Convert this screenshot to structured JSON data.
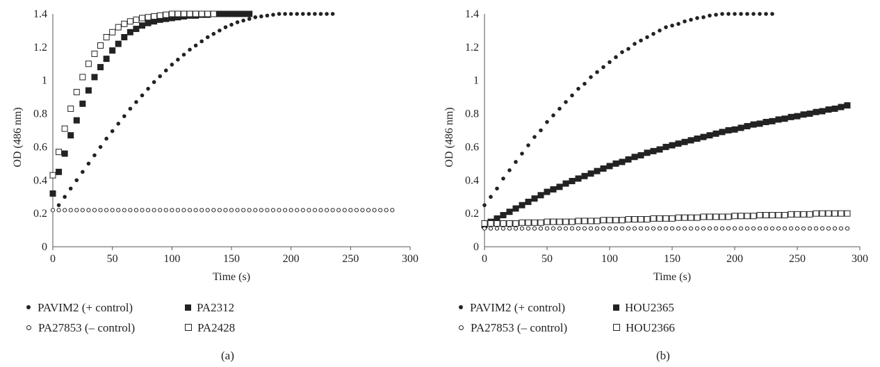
{
  "chart_data": [
    {
      "type": "scatter",
      "panel_label": "(a)",
      "xlabel": "Time (s)",
      "ylabel": "OD (486 nm)",
      "xlim": [
        0,
        300
      ],
      "ylim": [
        0,
        1.4
      ],
      "xticks": [
        "0",
        "50",
        "100",
        "150",
        "200",
        "250",
        "300"
      ],
      "yticks": [
        "0",
        "0.2",
        "0.4",
        "0.6",
        "0.8",
        "1",
        "1.2",
        "1.4"
      ],
      "grid": false,
      "legend_position": "bottom",
      "series": [
        {
          "name": "PAVIM2 (+ control)",
          "marker": "filled-circle",
          "x": [
            5,
            10,
            15,
            20,
            25,
            30,
            35,
            40,
            45,
            50,
            55,
            60,
            65,
            70,
            75,
            80,
            85,
            90,
            95,
            100,
            105,
            110,
            115,
            120,
            125,
            130,
            135,
            140,
            145,
            150,
            155,
            160,
            165,
            170,
            175,
            180,
            185,
            190,
            195,
            200,
            205,
            210,
            215,
            220,
            225,
            230,
            235
          ],
          "y": [
            0.25,
            0.3,
            0.35,
            0.4,
            0.45,
            0.5,
            0.55,
            0.6,
            0.65,
            0.695,
            0.74,
            0.785,
            0.83,
            0.87,
            0.91,
            0.95,
            0.99,
            1.025,
            1.06,
            1.095,
            1.125,
            1.155,
            1.185,
            1.21,
            1.235,
            1.26,
            1.28,
            1.3,
            1.32,
            1.335,
            1.35,
            1.36,
            1.37,
            1.38,
            1.385,
            1.39,
            1.395,
            1.4,
            1.4,
            1.4,
            1.4,
            1.4,
            1.4,
            1.4,
            1.4,
            1.4,
            1.4
          ]
        },
        {
          "name": "PA2312",
          "marker": "filled-square",
          "x": [
            0,
            5,
            10,
            15,
            20,
            25,
            30,
            35,
            40,
            45,
            50,
            55,
            60,
            65,
            70,
            75,
            80,
            85,
            90,
            95,
            100,
            105,
            110,
            115,
            120,
            125,
            130,
            135,
            140,
            145,
            150,
            155,
            160,
            165
          ],
          "y": [
            0.32,
            0.45,
            0.56,
            0.67,
            0.76,
            0.86,
            0.94,
            1.02,
            1.08,
            1.13,
            1.18,
            1.22,
            1.26,
            1.29,
            1.31,
            1.33,
            1.345,
            1.355,
            1.365,
            1.37,
            1.375,
            1.38,
            1.385,
            1.39,
            1.39,
            1.395,
            1.395,
            1.4,
            1.4,
            1.4,
            1.4,
            1.4,
            1.4,
            1.4
          ]
        },
        {
          "name": "PA27853 (– control)",
          "marker": "open-circle",
          "x": [
            0,
            5,
            10,
            15,
            20,
            25,
            30,
            35,
            40,
            45,
            50,
            55,
            60,
            65,
            70,
            75,
            80,
            85,
            90,
            95,
            100,
            105,
            110,
            115,
            120,
            125,
            130,
            135,
            140,
            145,
            150,
            155,
            160,
            165,
            170,
            175,
            180,
            185,
            190,
            195,
            200,
            205,
            210,
            215,
            220,
            225,
            230,
            235,
            240,
            245,
            250,
            255,
            260,
            265,
            270,
            275,
            280,
            285
          ],
          "y": [
            0.22,
            0.22,
            0.22,
            0.22,
            0.22,
            0.22,
            0.22,
            0.22,
            0.22,
            0.22,
            0.22,
            0.22,
            0.22,
            0.22,
            0.22,
            0.22,
            0.22,
            0.22,
            0.22,
            0.22,
            0.22,
            0.22,
            0.22,
            0.22,
            0.22,
            0.22,
            0.22,
            0.22,
            0.22,
            0.22,
            0.22,
            0.22,
            0.22,
            0.22,
            0.22,
            0.22,
            0.22,
            0.22,
            0.22,
            0.22,
            0.22,
            0.22,
            0.22,
            0.22,
            0.22,
            0.22,
            0.22,
            0.22,
            0.22,
            0.22,
            0.22,
            0.22,
            0.22,
            0.22,
            0.22,
            0.22,
            0.22,
            0.22
          ]
        },
        {
          "name": "PA2428",
          "marker": "open-square",
          "x": [
            0,
            5,
            10,
            15,
            20,
            25,
            30,
            35,
            40,
            45,
            50,
            55,
            60,
            65,
            70,
            75,
            80,
            85,
            90,
            95,
            100,
            105,
            110,
            115,
            120,
            125,
            130,
            135
          ],
          "y": [
            0.43,
            0.57,
            0.71,
            0.83,
            0.93,
            1.02,
            1.1,
            1.16,
            1.21,
            1.26,
            1.29,
            1.32,
            1.34,
            1.355,
            1.365,
            1.375,
            1.38,
            1.385,
            1.39,
            1.395,
            1.4,
            1.4,
            1.4,
            1.4,
            1.4,
            1.4,
            1.4,
            1.4
          ]
        }
      ],
      "legend_columns": [
        [
          "PAVIM2 (+ control)",
          "PA27853 (– control)"
        ],
        [
          "PA2312",
          "PA2428"
        ]
      ]
    },
    {
      "type": "scatter",
      "panel_label": "(b)",
      "xlabel": "Time (s)",
      "ylabel": "OD (486 nm)",
      "xlim": [
        0,
        300
      ],
      "ylim": [
        0,
        1.4
      ],
      "xticks": [
        "0",
        "50",
        "100",
        "150",
        "200",
        "250",
        "300"
      ],
      "yticks": [
        "0",
        "0.2",
        "0.4",
        "0.6",
        "0.8",
        "1",
        "1.2",
        "1.4"
      ],
      "grid": false,
      "legend_position": "bottom",
      "series": [
        {
          "name": "PAVIM2 (+ control)",
          "marker": "filled-circle",
          "x": [
            0,
            5,
            10,
            15,
            20,
            25,
            30,
            35,
            40,
            45,
            50,
            55,
            60,
            65,
            70,
            75,
            80,
            85,
            90,
            95,
            100,
            105,
            110,
            115,
            120,
            125,
            130,
            135,
            140,
            145,
            150,
            155,
            160,
            165,
            170,
            175,
            180,
            185,
            190,
            195,
            200,
            205,
            210,
            215,
            220,
            225,
            230
          ],
          "y": [
            0.25,
            0.3,
            0.35,
            0.41,
            0.46,
            0.51,
            0.56,
            0.61,
            0.66,
            0.7,
            0.75,
            0.79,
            0.83,
            0.87,
            0.91,
            0.95,
            0.98,
            1.02,
            1.05,
            1.08,
            1.11,
            1.14,
            1.17,
            1.19,
            1.22,
            1.24,
            1.26,
            1.28,
            1.3,
            1.32,
            1.33,
            1.34,
            1.355,
            1.365,
            1.375,
            1.38,
            1.39,
            1.395,
            1.4,
            1.4,
            1.4,
            1.4,
            1.4,
            1.4,
            1.4,
            1.4,
            1.4
          ]
        },
        {
          "name": "HOU2365",
          "marker": "filled-square",
          "x": [
            0,
            5,
            10,
            15,
            20,
            25,
            30,
            35,
            40,
            45,
            50,
            55,
            60,
            65,
            70,
            75,
            80,
            85,
            90,
            95,
            100,
            105,
            110,
            115,
            120,
            125,
            130,
            135,
            140,
            145,
            150,
            155,
            160,
            165,
            170,
            175,
            180,
            185,
            190,
            195,
            200,
            205,
            210,
            215,
            220,
            225,
            230,
            235,
            240,
            245,
            250,
            255,
            260,
            265,
            270,
            275,
            280,
            285,
            290
          ],
          "y": [
            0.13,
            0.15,
            0.17,
            0.19,
            0.21,
            0.23,
            0.25,
            0.27,
            0.29,
            0.31,
            0.33,
            0.345,
            0.36,
            0.38,
            0.395,
            0.41,
            0.425,
            0.44,
            0.455,
            0.47,
            0.485,
            0.5,
            0.51,
            0.525,
            0.54,
            0.55,
            0.565,
            0.575,
            0.585,
            0.6,
            0.61,
            0.62,
            0.63,
            0.64,
            0.65,
            0.66,
            0.67,
            0.68,
            0.69,
            0.7,
            0.705,
            0.715,
            0.725,
            0.735,
            0.74,
            0.75,
            0.755,
            0.765,
            0.77,
            0.78,
            0.785,
            0.795,
            0.8,
            0.81,
            0.815,
            0.825,
            0.83,
            0.84,
            0.85
          ]
        },
        {
          "name": "PA27853 (– control)",
          "marker": "open-circle",
          "x": [
            0,
            5,
            10,
            15,
            20,
            25,
            30,
            35,
            40,
            45,
            50,
            55,
            60,
            65,
            70,
            75,
            80,
            85,
            90,
            95,
            100,
            105,
            110,
            115,
            120,
            125,
            130,
            135,
            140,
            145,
            150,
            155,
            160,
            165,
            170,
            175,
            180,
            185,
            190,
            195,
            200,
            205,
            210,
            215,
            220,
            225,
            230,
            235,
            240,
            245,
            250,
            255,
            260,
            265,
            270,
            275,
            280,
            285,
            290
          ],
          "y": [
            0.11,
            0.11,
            0.11,
            0.11,
            0.11,
            0.11,
            0.11,
            0.11,
            0.11,
            0.11,
            0.11,
            0.11,
            0.11,
            0.11,
            0.11,
            0.11,
            0.11,
            0.11,
            0.11,
            0.11,
            0.11,
            0.11,
            0.11,
            0.11,
            0.11,
            0.11,
            0.11,
            0.11,
            0.11,
            0.11,
            0.11,
            0.11,
            0.11,
            0.11,
            0.11,
            0.11,
            0.11,
            0.11,
            0.11,
            0.11,
            0.11,
            0.11,
            0.11,
            0.11,
            0.11,
            0.11,
            0.11,
            0.11,
            0.11,
            0.11,
            0.11,
            0.11,
            0.11,
            0.11,
            0.11,
            0.11,
            0.11,
            0.11,
            0.11
          ]
        },
        {
          "name": "HOU2366",
          "marker": "open-square",
          "x": [
            0,
            5,
            10,
            15,
            20,
            25,
            30,
            35,
            40,
            45,
            50,
            55,
            60,
            65,
            70,
            75,
            80,
            85,
            90,
            95,
            100,
            105,
            110,
            115,
            120,
            125,
            130,
            135,
            140,
            145,
            150,
            155,
            160,
            165,
            170,
            175,
            180,
            185,
            190,
            195,
            200,
            205,
            210,
            215,
            220,
            225,
            230,
            235,
            240,
            245,
            250,
            255,
            260,
            265,
            270,
            275,
            280,
            285,
            290
          ],
          "y": [
            0.14,
            0.14,
            0.14,
            0.14,
            0.14,
            0.14,
            0.145,
            0.145,
            0.145,
            0.145,
            0.15,
            0.15,
            0.15,
            0.15,
            0.15,
            0.155,
            0.155,
            0.155,
            0.155,
            0.16,
            0.16,
            0.16,
            0.16,
            0.165,
            0.165,
            0.165,
            0.165,
            0.17,
            0.17,
            0.17,
            0.17,
            0.175,
            0.175,
            0.175,
            0.175,
            0.18,
            0.18,
            0.18,
            0.18,
            0.18,
            0.185,
            0.185,
            0.185,
            0.185,
            0.19,
            0.19,
            0.19,
            0.19,
            0.19,
            0.195,
            0.195,
            0.195,
            0.195,
            0.2,
            0.2,
            0.2,
            0.2,
            0.2,
            0.2
          ]
        }
      ],
      "legend_columns": [
        [
          "PAVIM2 (+ control)",
          "PA27853 (– control)"
        ],
        [
          "HOU2365",
          "HOU2366"
        ]
      ]
    }
  ]
}
